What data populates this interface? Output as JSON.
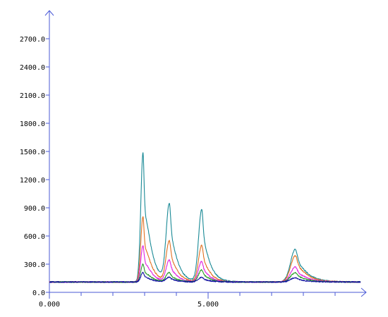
{
  "chart_data": {
    "type": "line",
    "title": "",
    "xlabel": "",
    "ylabel": "",
    "xlim": [
      0,
      9.8
    ],
    "ylim": [
      0,
      2850
    ],
    "y_ticks": [
      0,
      300,
      600,
      900,
      1200,
      1500,
      1800,
      2100,
      2400,
      2700
    ],
    "y_tick_labels": [
      "0.0",
      "300.0",
      "600.0",
      "900.0",
      "1200.0",
      "1500.0",
      "1800.0",
      "2100.0",
      "2400.0",
      "2700.0"
    ],
    "x_major_ticks": [
      0,
      5
    ],
    "x_tick_labels": [
      "0.000",
      "5.000"
    ],
    "x_minor_ticks": [
      1,
      2,
      3,
      4,
      6,
      7,
      8,
      9
    ],
    "grid": false,
    "legend": "none",
    "baseline": 110,
    "peaks": [
      {
        "center": 2.95,
        "rise_width": 0.07,
        "tail_width": 0.2
      },
      {
        "center": 3.78,
        "rise_width": 0.1,
        "tail_width": 0.2
      },
      {
        "center": 4.8,
        "rise_width": 0.1,
        "tail_width": 0.2
      },
      {
        "center": 7.75,
        "rise_width": 0.15,
        "tail_width": 0.3
      }
    ],
    "series": [
      {
        "color": "#1a8a96",
        "peak_heights": [
          1490,
          930,
          880,
          460
        ]
      },
      {
        "color": "#e07020",
        "peak_heights": [
          810,
          540,
          500,
          390
        ]
      },
      {
        "color": "#e020e0",
        "peak_heights": [
          500,
          340,
          330,
          270
        ]
      },
      {
        "color": "#2a9a2a",
        "peak_heights": [
          300,
          210,
          240,
          210
        ]
      },
      {
        "color": "#1010a0",
        "peak_heights": [
          210,
          160,
          160,
          155
        ]
      }
    ]
  }
}
